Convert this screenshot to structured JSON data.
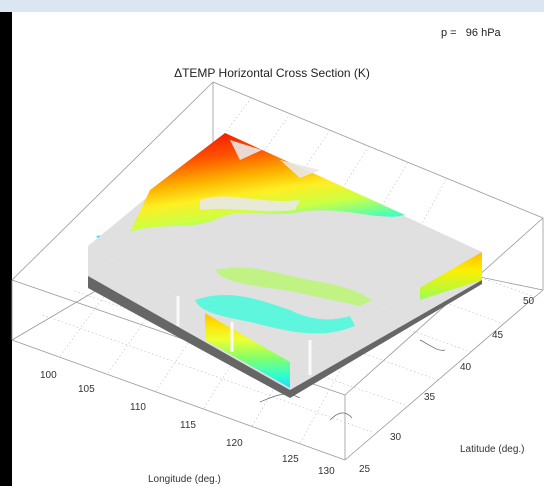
{
  "header": {
    "pressure_label": "p =",
    "pressure_value": "96 hPa"
  },
  "chart_data": {
    "type": "heatmap",
    "title": "ΔTEMP Horizontal Cross Section (K)",
    "xlabel": "Longitude (deg.)",
    "ylabel": "Latitude (deg.)",
    "x_ticks": [
      "100",
      "105",
      "110",
      "115",
      "120",
      "125",
      "130"
    ],
    "y_ticks": [
      "25",
      "30",
      "35",
      "40",
      "45",
      "50"
    ],
    "xlim": [
      97,
      131
    ],
    "ylim": [
      24,
      54
    ],
    "grid": true,
    "colormap": [
      "#00ccff",
      "#33ffcc",
      "#ccff33",
      "#ffff00",
      "#ffcc00",
      "#ff6600",
      "#ee1100"
    ],
    "missing_color": "#e0e0e0",
    "shadow_color": "#666666"
  }
}
